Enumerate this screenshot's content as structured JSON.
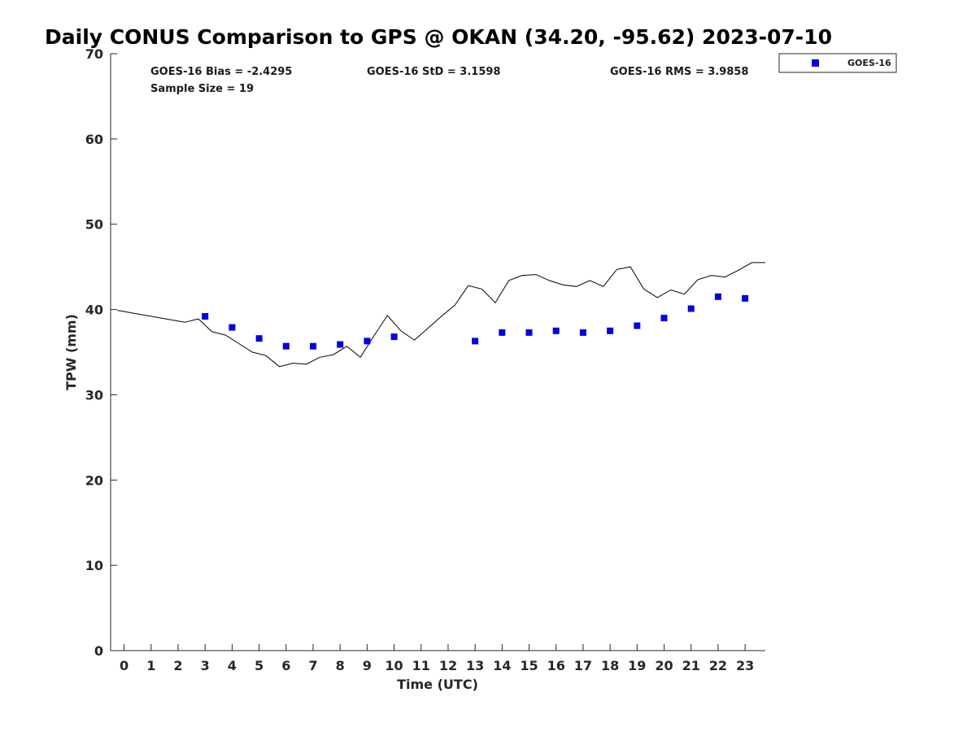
{
  "chart_data": {
    "type": "scatter",
    "title": "Daily CONUS Comparison to GPS @ OKAN (34.20, -95.62) 2023-07-10",
    "xlabel": "Time (UTC)",
    "ylabel": "TPW (mm)",
    "xlim": [
      -0.5,
      23.75
    ],
    "ylim": [
      0,
      70
    ],
    "x_ticks": [
      0,
      1,
      2,
      3,
      4,
      5,
      6,
      7,
      8,
      9,
      10,
      11,
      12,
      13,
      14,
      15,
      16,
      17,
      18,
      19,
      20,
      21,
      22,
      23
    ],
    "y_ticks": [
      0,
      10,
      20,
      30,
      40,
      50,
      60,
      70
    ],
    "grid": false,
    "legend_position": "outside-top-right",
    "stats": {
      "bias": "GOES-16 Bias = -2.4295",
      "std": "GOES-16 StD = 3.1598",
      "rms": "GOES-16 RMS = 3.9858",
      "sample": "Sample Size = 19"
    },
    "series": [
      {
        "name": "GOES-16",
        "kind": "scatter",
        "color": "#0000e0",
        "marker": "square",
        "x": [
          3.0,
          4.0,
          5.0,
          6.0,
          7.0,
          8.0,
          9.0,
          10.0,
          13.0,
          14.0,
          15.0,
          16.0,
          17.0,
          18.0,
          19.0,
          20.0,
          21.0,
          22.0,
          23.0
        ],
        "y": [
          39.2,
          37.9,
          36.6,
          35.7,
          35.7,
          35.9,
          36.3,
          36.8,
          36.3,
          37.3,
          37.3,
          37.5,
          37.3,
          37.5,
          38.1,
          39.0,
          40.1,
          41.5,
          41.3
        ]
      },
      {
        "kind": "line",
        "color": "#000000",
        "x": [
          -0.25,
          2.25,
          2.75,
          3.25,
          3.75,
          4.25,
          4.75,
          5.25,
          5.75,
          6.25,
          6.75,
          7.25,
          7.75,
          8.25,
          8.75,
          9.25,
          9.75,
          10.25,
          10.75,
          11.25,
          11.75,
          12.25,
          12.75,
          13.25,
          13.75,
          14.25,
          14.75,
          15.25,
          15.75,
          16.25,
          16.75,
          17.25,
          17.75,
          18.25,
          18.75,
          19.25,
          19.75,
          20.25,
          20.75,
          21.25,
          21.75,
          22.25,
          22.75,
          23.25,
          23.75
        ],
        "y": [
          39.9,
          38.5,
          38.9,
          37.4,
          37.0,
          36.0,
          35.0,
          34.6,
          33.3,
          33.7,
          33.6,
          34.4,
          34.7,
          35.7,
          34.4,
          36.9,
          39.3,
          37.5,
          36.4,
          37.8,
          39.2,
          40.5,
          42.8,
          42.4,
          40.8,
          43.4,
          44.0,
          44.1,
          43.4,
          42.9,
          42.7,
          43.4,
          42.7,
          44.7,
          45.0,
          42.4,
          41.4,
          42.3,
          41.8,
          43.5,
          44.0,
          43.8,
          44.6,
          45.5,
          45.5
        ]
      }
    ]
  }
}
